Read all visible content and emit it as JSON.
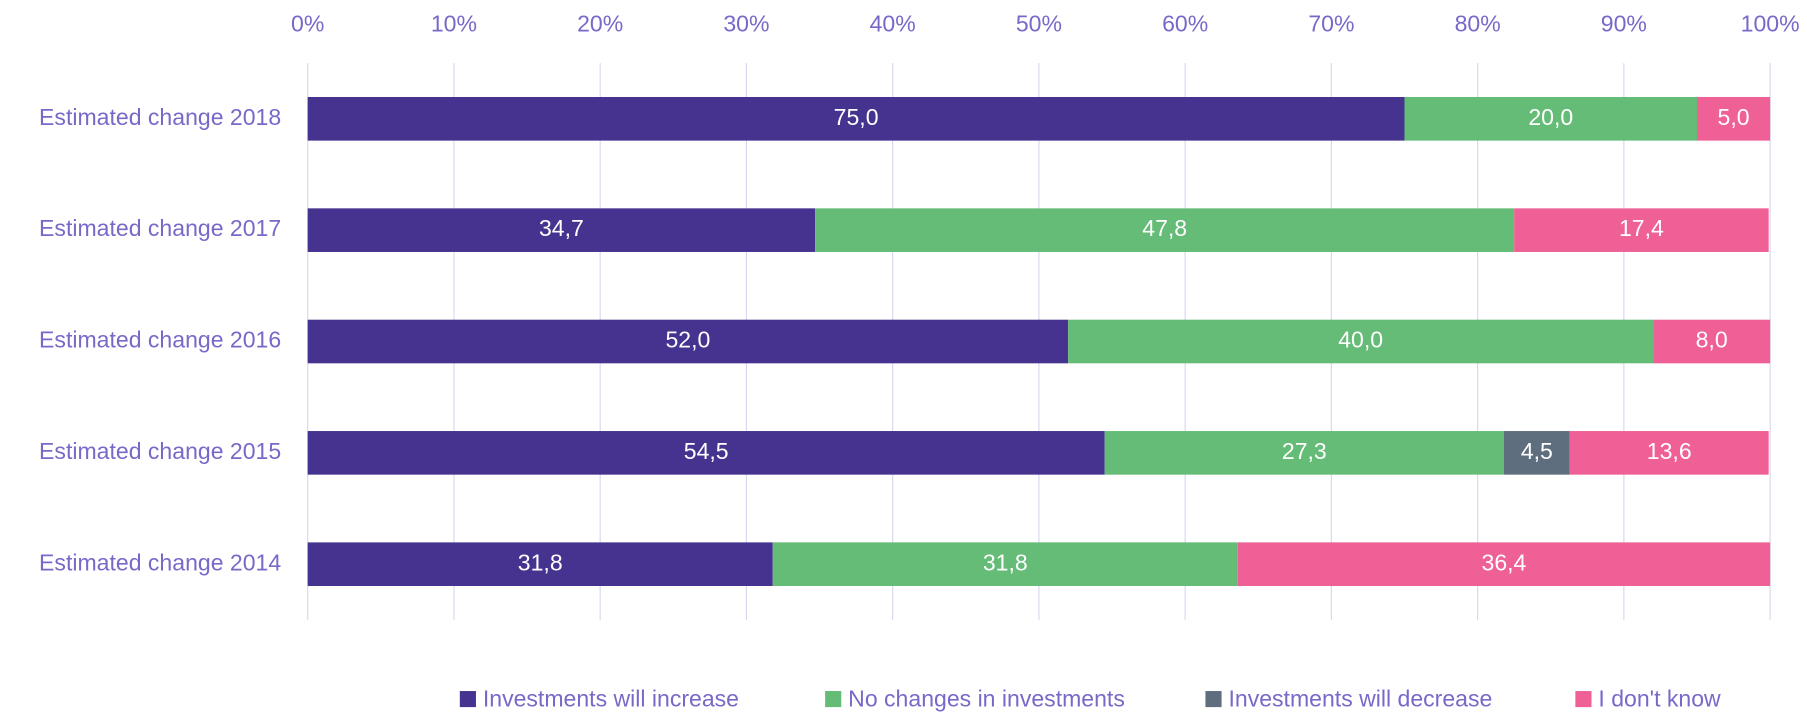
{
  "chart_data": {
    "type": "stacked_barh",
    "categories": [
      "Estimated change 2018",
      "Estimated change 2017",
      "Estimated change 2016",
      "Estimated change 2015",
      "Estimated change 2014"
    ],
    "series": [
      {
        "name": "Investments will increase",
        "color": "#46338f",
        "values": [
          75.0,
          34.7,
          52.0,
          54.5,
          31.8
        ],
        "value_labels": [
          "75,0",
          "34,7",
          "52,0",
          "54,5",
          "31,8"
        ]
      },
      {
        "name": "No changes in investments",
        "color": "#64bc76",
        "values": [
          20.0,
          47.8,
          40.0,
          27.3,
          31.8
        ],
        "value_labels": [
          "20,0",
          "47,8",
          "40,0",
          "27,3",
          "31,8"
        ]
      },
      {
        "name": "Investments will decrease",
        "color": "#5f6e7e",
        "values": [
          null,
          null,
          null,
          4.5,
          null
        ],
        "value_labels": [
          null,
          null,
          null,
          "4,5",
          null
        ]
      },
      {
        "name": "I don't know",
        "color": "#ee6096",
        "values": [
          5.0,
          17.4,
          8.0,
          13.6,
          36.4
        ],
        "value_labels": [
          "5,0",
          "17,4",
          "8,0",
          "13,6",
          "36,4"
        ]
      }
    ],
    "xlim": [
      0,
      100
    ],
    "xticks": [
      {
        "value": 0,
        "label": "0%"
      },
      {
        "value": 10,
        "label": "10%"
      },
      {
        "value": 20,
        "label": "20%"
      },
      {
        "value": 30,
        "label": "30%"
      },
      {
        "value": 40,
        "label": "40%"
      },
      {
        "value": 50,
        "label": "50%"
      },
      {
        "value": 60,
        "label": "60%"
      },
      {
        "value": 70,
        "label": "70%"
      },
      {
        "value": 80,
        "label": "80%"
      },
      {
        "value": 90,
        "label": "90%"
      },
      {
        "value": 100,
        "label": "100%"
      }
    ],
    "grid": true,
    "legend": "bottom"
  }
}
